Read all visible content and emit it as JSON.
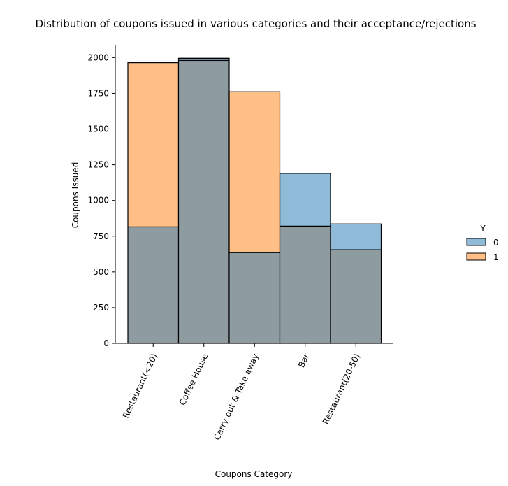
{
  "chart_data": {
    "type": "bar",
    "title": "Distribution of coupons issued in various categories and their acceptance/rejections",
    "xlabel": "Coupons Category",
    "ylabel": "Coupons Issued",
    "categories": [
      "Restaurant(<20)",
      "Coffee House",
      "Carry out & Take away",
      "Bar",
      "Restaurant(20-50)"
    ],
    "ylim": [
      0,
      2085
    ],
    "yticks": [
      0,
      250,
      500,
      750,
      1000,
      1250,
      1500,
      1750,
      2000
    ],
    "series": [
      {
        "name": "0",
        "values": [
          815,
          1995,
          635,
          1190,
          835
        ],
        "color": "#1f77b4"
      },
      {
        "name": "1",
        "values": [
          1965,
          1980,
          1760,
          820,
          655
        ],
        "color": "#ff7f0e"
      }
    ],
    "overlap_color": "#8e9ba0",
    "legend": {
      "title": "Y",
      "placement": "right"
    },
    "grid": false
  }
}
